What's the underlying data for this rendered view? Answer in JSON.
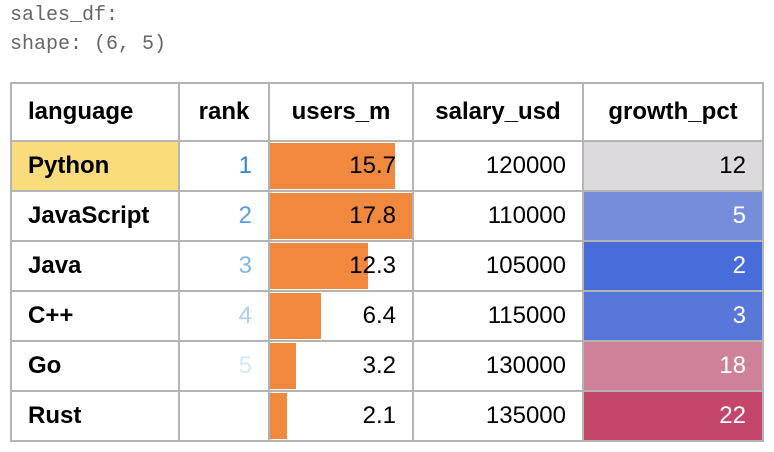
{
  "header": {
    "name": "sales_df:",
    "shape": "shape: (6, 5)"
  },
  "table": {
    "columns": [
      "language",
      "rank",
      "users_m",
      "salary_usd",
      "growth_pct"
    ],
    "rows": [
      [
        "Python",
        1,
        15.7,
        120000,
        12
      ],
      [
        "JavaScript",
        2,
        17.8,
        110000,
        5
      ],
      [
        "Java",
        3,
        12.3,
        105000,
        2
      ],
      [
        "C++",
        4,
        6.4,
        115000,
        3
      ],
      [
        "Go",
        5,
        3.2,
        130000,
        18
      ],
      [
        "Rust",
        null,
        2.1,
        135000,
        22
      ]
    ],
    "highlight_color": "#f9dc7c",
    "rank_colors": [
      "#2f86d8",
      "#ffffff"
    ],
    "bar_color": "#f0883e",
    "growth_colors": [
      "#486cda",
      "#dddadd",
      "#c4466a"
    ]
  }
}
